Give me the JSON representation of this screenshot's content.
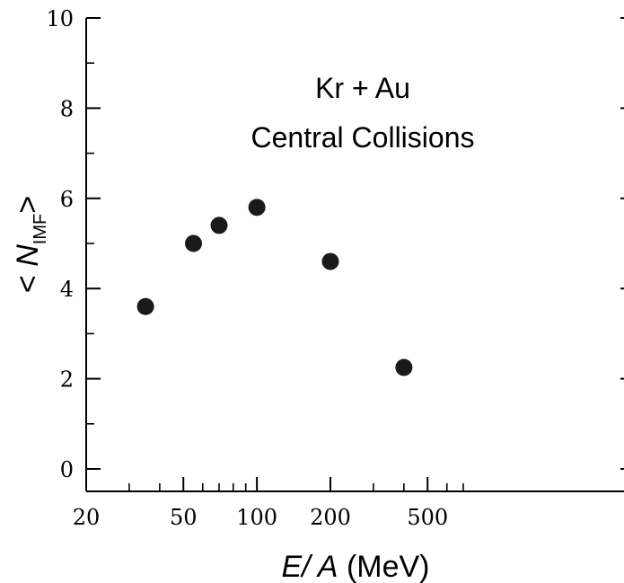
{
  "chart_data": {
    "type": "scatter",
    "title": "",
    "annotations": [
      "Kr + Au",
      "Central Collisions"
    ],
    "xlabel": {
      "italic": "E/ A",
      "rest": " (MeV)"
    },
    "ylabel": {
      "prefix": "< ",
      "symbol": "N",
      "subscript": "IMF",
      "suffix": ">"
    },
    "xscale": "log",
    "xlim": [
      20,
      700
    ],
    "ylim": [
      -0.5,
      10
    ],
    "xticks_major": [
      20,
      50,
      100,
      200,
      500
    ],
    "xtick_labels": [
      "20",
      "50",
      "100",
      "200",
      "500"
    ],
    "xticks_minor": [
      30,
      40,
      60,
      70,
      80,
      90,
      300,
      400,
      600,
      700
    ],
    "yticks_major": [
      0,
      2,
      4,
      6,
      8,
      10
    ],
    "ytick_labels": [
      "0",
      "2",
      "4",
      "6",
      "8",
      "10"
    ],
    "yticks_minor": [
      1,
      3,
      5,
      7,
      9
    ],
    "grid": false,
    "marker_color": "#1a1a1a",
    "series": [
      {
        "x": [
          35,
          55,
          70,
          100,
          200,
          400
        ],
        "y": [
          3.6,
          5.0,
          5.4,
          5.8,
          4.6,
          2.25
        ]
      }
    ]
  }
}
